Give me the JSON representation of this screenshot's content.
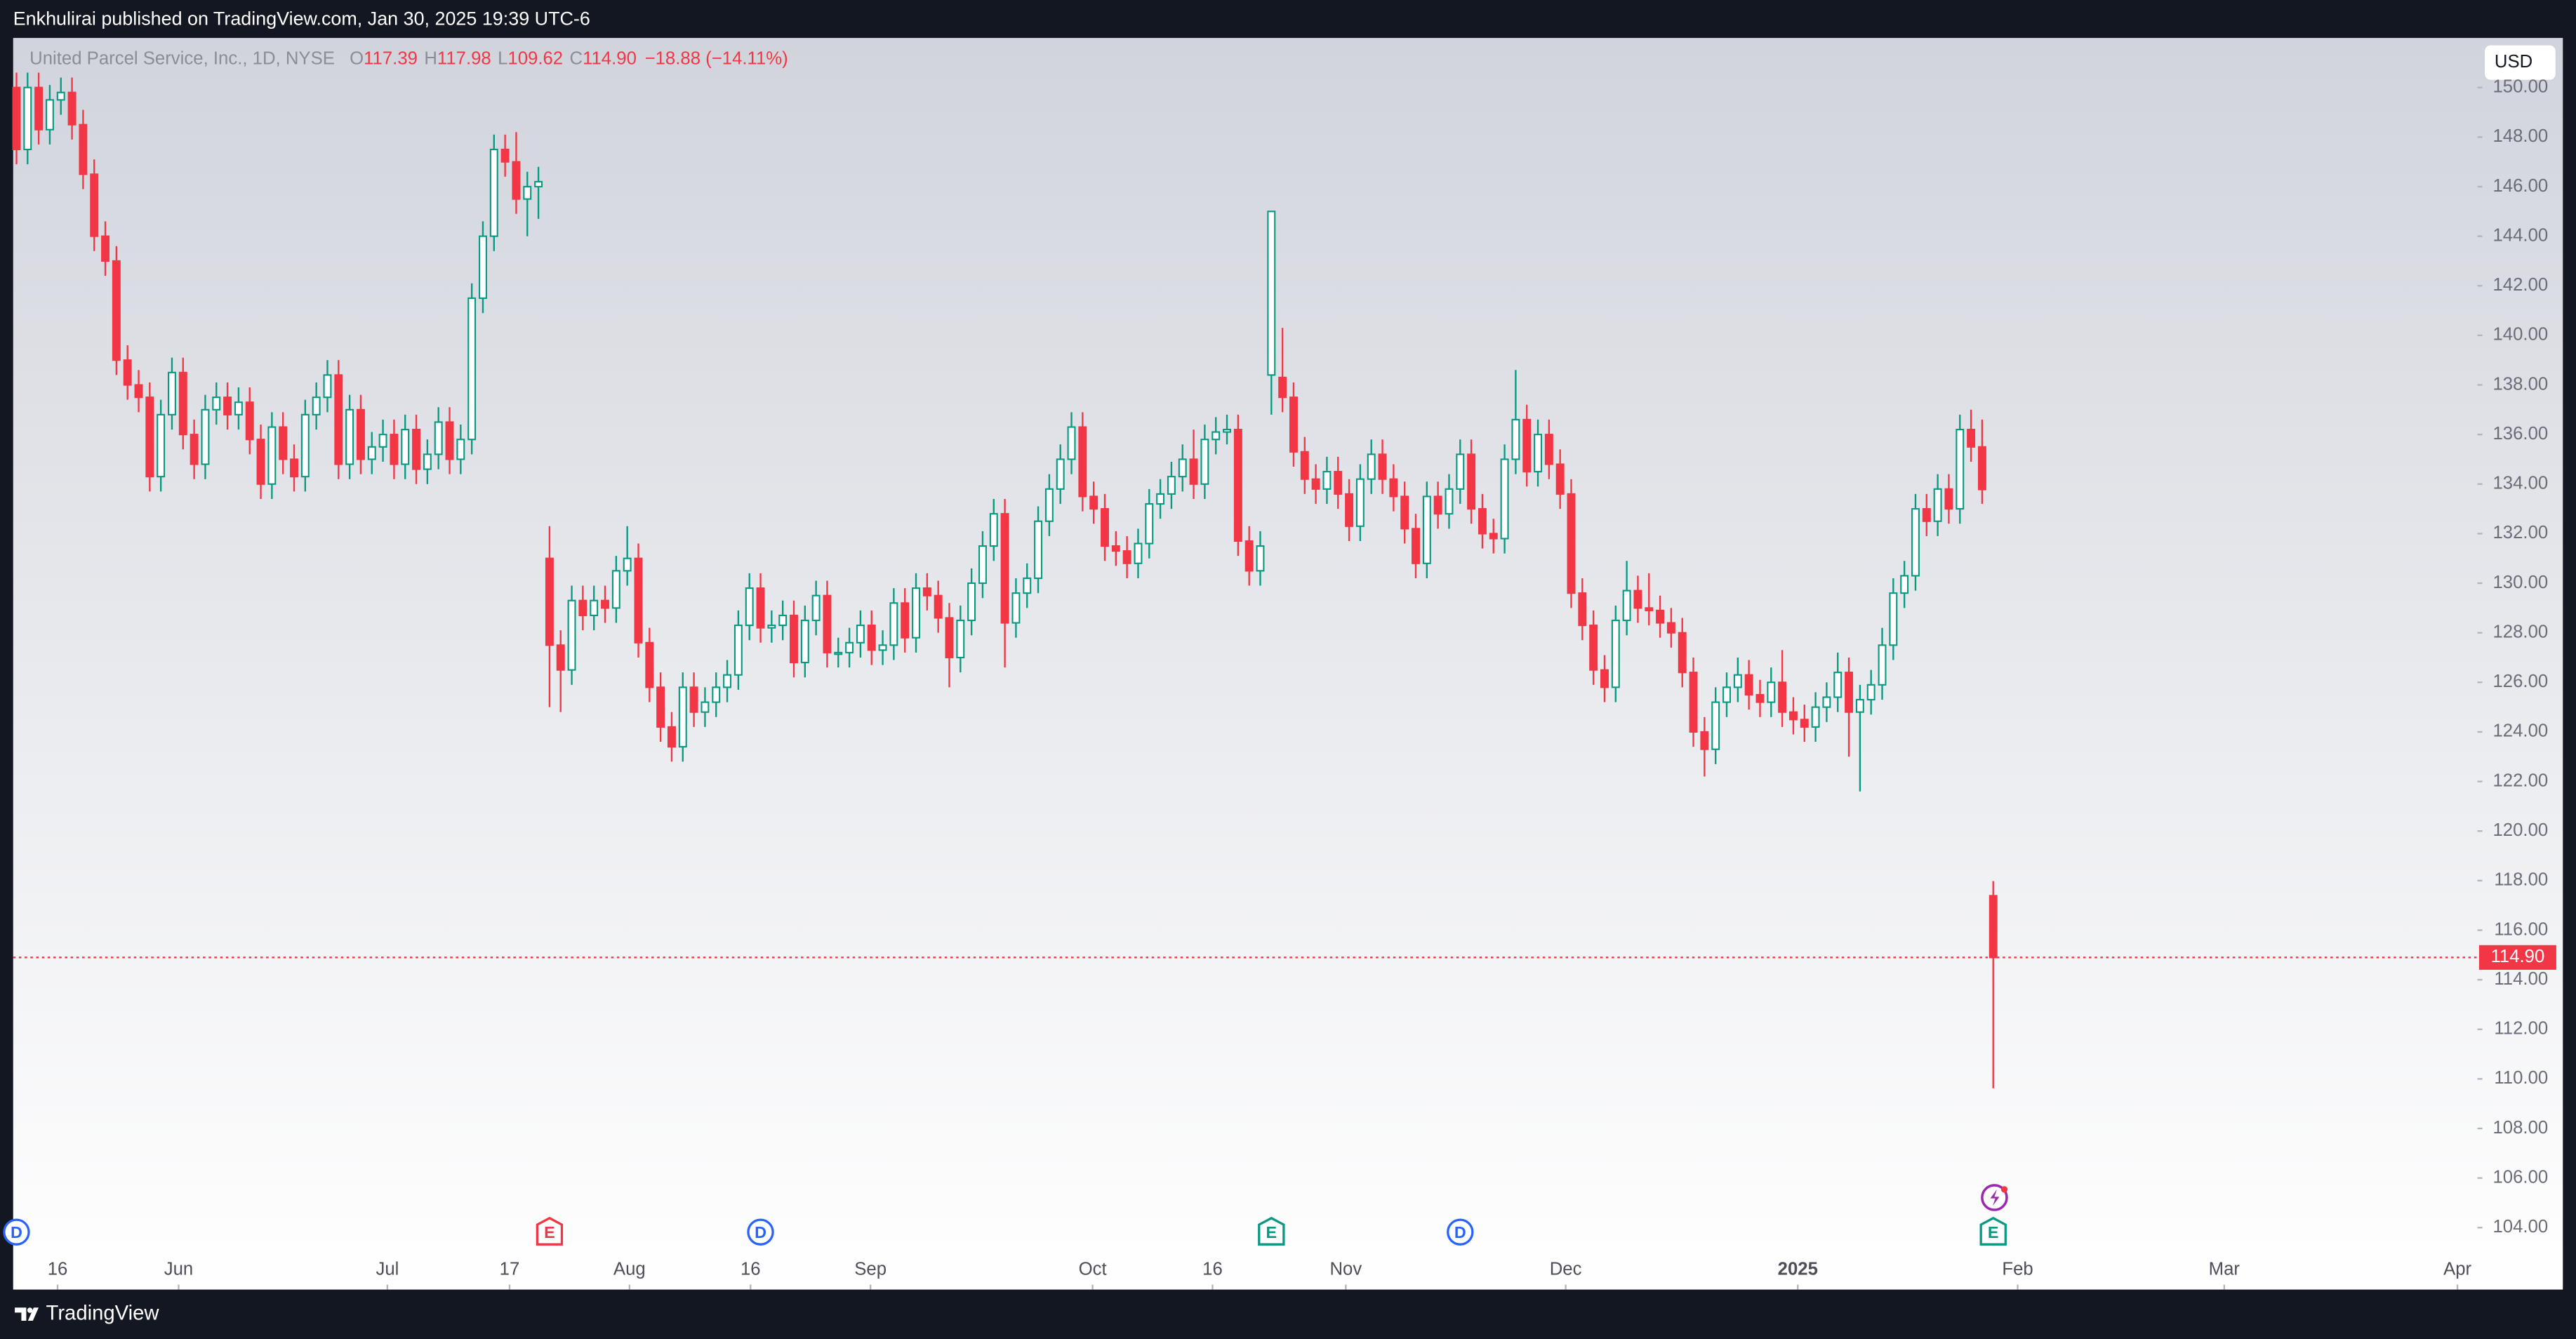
{
  "publisher": "Enkhulirai published on TradingView.com, Jan 30, 2025 19:39 UTC-6",
  "brand": "TradingView",
  "chart_data": {
    "type": "candlestick",
    "title": "United Parcel Service, Inc., 1D, NYSE",
    "ohlc": [
      {
        "key": "O",
        "value": "117.39"
      },
      {
        "key": "H",
        "value": "117.98"
      },
      {
        "key": "L",
        "value": "109.62"
      },
      {
        "key": "C",
        "value": "114.90"
      }
    ],
    "change": "−18.88 (−14.11%)",
    "currency": "USD",
    "last_price_label": "114.90",
    "up_color": "#089981",
    "down_color": "#f23645",
    "hollow_up": true,
    "ylim": [
      101.5,
      152
    ],
    "yticks": [
      {
        "value": 104,
        "label": "104.00"
      },
      {
        "value": 106,
        "label": "106.00"
      },
      {
        "value": 108,
        "label": "108.00"
      },
      {
        "value": 110,
        "label": "110.00"
      },
      {
        "value": 112,
        "label": "112.00"
      },
      {
        "value": 114,
        "label": "114.00"
      },
      {
        "value": 116,
        "label": "116.00"
      },
      {
        "value": 118,
        "label": "118.00"
      },
      {
        "value": 120,
        "label": "120.00"
      },
      {
        "value": 122,
        "label": "122.00"
      },
      {
        "value": 124,
        "label": "124.00"
      },
      {
        "value": 126,
        "label": "126.00"
      },
      {
        "value": 128,
        "label": "128.00"
      },
      {
        "value": 130,
        "label": "130.00"
      },
      {
        "value": 132,
        "label": "132.00"
      },
      {
        "value": 134,
        "label": "134.00"
      },
      {
        "value": 136,
        "label": "136.00"
      },
      {
        "value": 138,
        "label": "138.00"
      },
      {
        "value": 140,
        "label": "140.00"
      },
      {
        "value": 142,
        "label": "142.00"
      },
      {
        "value": 144,
        "label": "144.00"
      },
      {
        "value": 146,
        "label": "146.00"
      },
      {
        "value": 148,
        "label": "148.00"
      },
      {
        "value": 150,
        "label": "150.00"
      }
    ],
    "xlim": [
      -0.3,
      221.6
    ],
    "xticks": [
      {
        "value": 3.7,
        "label": "16"
      },
      {
        "value": 14.6,
        "label": "Jun"
      },
      {
        "value": 33.4,
        "label": "Jul"
      },
      {
        "value": 44.4,
        "label": "17"
      },
      {
        "value": 55.2,
        "label": "Aug"
      },
      {
        "value": 66.1,
        "label": "16"
      },
      {
        "value": 76.9,
        "label": "Sep"
      },
      {
        "value": 96.9,
        "label": "Oct"
      },
      {
        "value": 107.7,
        "label": "16"
      },
      {
        "value": 119.7,
        "label": "Nov"
      },
      {
        "value": 139.5,
        "label": "Dec"
      },
      {
        "value": 160.4,
        "label": "2025"
      },
      {
        "value": 180.2,
        "label": "Feb"
      },
      {
        "value": 198.8,
        "label": "Mar"
      },
      {
        "value": 219.8,
        "label": "Apr"
      }
    ],
    "events": [
      {
        "label": "D",
        "bar": 0,
        "color": "#2962ff"
      },
      {
        "label": "E",
        "bar": 48,
        "color": "#f23645"
      },
      {
        "label": "D",
        "bar": 67,
        "color": "#2962ff"
      },
      {
        "label": "E",
        "bar": 113,
        "color": "#089981"
      },
      {
        "label": "D",
        "bar": 130,
        "color": "#2962ff"
      },
      {
        "label": "E",
        "bar": 178,
        "color": "#089981"
      }
    ],
    "candles": [
      [
        150.0,
        150.6,
        146.9,
        147.5
      ],
      [
        147.5,
        150.6,
        146.9,
        150.0
      ],
      [
        150.0,
        150.6,
        147.7,
        148.3
      ],
      [
        148.3,
        150.1,
        147.7,
        149.5
      ],
      [
        149.5,
        150.4,
        148.9,
        149.8
      ],
      [
        149.8,
        150.4,
        147.9,
        148.5
      ],
      [
        148.5,
        149.1,
        145.9,
        146.5
      ],
      [
        146.5,
        147.1,
        143.4,
        144.0
      ],
      [
        144.0,
        144.6,
        142.4,
        143.0
      ],
      [
        143.0,
        143.6,
        138.4,
        139.0
      ],
      [
        139.0,
        139.6,
        137.4,
        138.0
      ],
      [
        138.0,
        138.6,
        136.9,
        137.5
      ],
      [
        137.5,
        138.1,
        133.7,
        134.3
      ],
      [
        134.3,
        137.4,
        133.7,
        136.8
      ],
      [
        136.8,
        139.1,
        136.2,
        138.5
      ],
      [
        138.5,
        139.1,
        135.4,
        136.0
      ],
      [
        136.0,
        136.6,
        134.2,
        134.8
      ],
      [
        134.8,
        137.6,
        134.2,
        137.0
      ],
      [
        137.0,
        138.1,
        136.4,
        137.5
      ],
      [
        137.5,
        138.1,
        136.2,
        136.8
      ],
      [
        136.8,
        137.9,
        136.2,
        137.3
      ],
      [
        137.3,
        137.9,
        135.2,
        135.8
      ],
      [
        135.8,
        136.4,
        133.4,
        134.0
      ],
      [
        134.0,
        136.9,
        133.4,
        136.3
      ],
      [
        136.3,
        136.9,
        134.4,
        135.0
      ],
      [
        135.0,
        135.6,
        133.7,
        134.3
      ],
      [
        134.3,
        137.4,
        133.7,
        136.8
      ],
      [
        136.8,
        138.1,
        136.2,
        137.5
      ],
      [
        137.5,
        139.0,
        136.9,
        138.4
      ],
      [
        138.4,
        139.0,
        134.2,
        134.8
      ],
      [
        134.8,
        137.6,
        134.2,
        137.0
      ],
      [
        137.0,
        137.6,
        134.4,
        135.0
      ],
      [
        135.0,
        136.1,
        134.4,
        135.5
      ],
      [
        135.5,
        136.6,
        134.9,
        136.0
      ],
      [
        136.0,
        136.6,
        134.2,
        134.8
      ],
      [
        134.8,
        136.8,
        134.2,
        136.2
      ],
      [
        136.2,
        136.8,
        134.0,
        134.6
      ],
      [
        134.6,
        135.8,
        134.0,
        135.2
      ],
      [
        135.2,
        137.1,
        134.6,
        136.5
      ],
      [
        136.5,
        137.1,
        134.4,
        135.0
      ],
      [
        135.0,
        136.4,
        134.4,
        135.8
      ],
      [
        135.8,
        142.1,
        135.2,
        141.5
      ],
      [
        141.5,
        144.6,
        140.9,
        144.0
      ],
      [
        144.0,
        148.1,
        143.4,
        147.5
      ],
      [
        147.5,
        148.1,
        146.4,
        147.0
      ],
      [
        147.0,
        148.2,
        144.9,
        145.5
      ],
      [
        145.5,
        146.6,
        144.0,
        146.0
      ],
      [
        146.0,
        146.8,
        144.7,
        146.2
      ],
      [
        131.0,
        132.3,
        125.0,
        127.5
      ],
      [
        127.5,
        128.1,
        124.8,
        126.5
      ],
      [
        126.5,
        129.9,
        125.9,
        129.3
      ],
      [
        129.3,
        129.9,
        128.1,
        128.7
      ],
      [
        128.7,
        129.9,
        128.1,
        129.3
      ],
      [
        129.3,
        129.9,
        128.4,
        129.0
      ],
      [
        129.0,
        131.1,
        128.4,
        130.5
      ],
      [
        130.5,
        132.3,
        129.9,
        131.0
      ],
      [
        131.0,
        131.6,
        127.0,
        127.6
      ],
      [
        127.6,
        128.2,
        125.2,
        125.8
      ],
      [
        125.8,
        126.4,
        123.6,
        124.2
      ],
      [
        124.2,
        124.8,
        122.8,
        123.4
      ],
      [
        123.4,
        126.4,
        122.8,
        125.8
      ],
      [
        125.8,
        126.4,
        124.2,
        124.8
      ],
      [
        124.8,
        125.8,
        124.2,
        125.2
      ],
      [
        125.2,
        126.4,
        124.6,
        125.8
      ],
      [
        125.8,
        126.9,
        125.2,
        126.3
      ],
      [
        126.3,
        128.9,
        125.7,
        128.3
      ],
      [
        128.3,
        130.4,
        127.7,
        129.8
      ],
      [
        129.8,
        130.4,
        127.6,
        128.2
      ],
      [
        128.2,
        128.9,
        127.6,
        128.3
      ],
      [
        128.3,
        129.3,
        127.7,
        128.7
      ],
      [
        128.7,
        129.3,
        126.2,
        126.8
      ],
      [
        126.8,
        129.1,
        126.2,
        128.5
      ],
      [
        128.5,
        130.1,
        127.9,
        129.5
      ],
      [
        129.5,
        130.1,
        126.6,
        127.2
      ],
      [
        127.2,
        127.8,
        126.6,
        127.2
      ],
      [
        127.2,
        128.2,
        126.6,
        127.6
      ],
      [
        127.6,
        128.9,
        127.0,
        128.3
      ],
      [
        128.3,
        128.9,
        126.7,
        127.3
      ],
      [
        127.3,
        128.1,
        126.7,
        127.5
      ],
      [
        127.5,
        129.8,
        126.9,
        129.2
      ],
      [
        129.2,
        129.8,
        127.2,
        127.8
      ],
      [
        127.8,
        130.4,
        127.2,
        129.8
      ],
      [
        129.8,
        130.4,
        128.9,
        129.5
      ],
      [
        129.5,
        130.1,
        128.0,
        128.6
      ],
      [
        128.6,
        129.2,
        125.8,
        127.0
      ],
      [
        127.0,
        129.1,
        126.4,
        128.5
      ],
      [
        128.5,
        130.6,
        127.9,
        130.0
      ],
      [
        130.0,
        132.1,
        129.4,
        131.5
      ],
      [
        131.5,
        133.4,
        130.9,
        132.8
      ],
      [
        132.8,
        133.4,
        126.6,
        128.4
      ],
      [
        128.4,
        130.2,
        127.8,
        129.6
      ],
      [
        129.6,
        130.8,
        129.0,
        130.2
      ],
      [
        130.2,
        133.1,
        129.6,
        132.5
      ],
      [
        132.5,
        134.4,
        131.9,
        133.8
      ],
      [
        133.8,
        135.6,
        133.2,
        135.0
      ],
      [
        135.0,
        136.9,
        134.4,
        136.3
      ],
      [
        136.3,
        136.9,
        132.9,
        133.5
      ],
      [
        133.5,
        134.1,
        132.4,
        133.0
      ],
      [
        133.0,
        133.6,
        130.9,
        131.5
      ],
      [
        131.5,
        132.1,
        130.7,
        131.3
      ],
      [
        131.3,
        131.9,
        130.2,
        130.8
      ],
      [
        130.8,
        132.2,
        130.2,
        131.6
      ],
      [
        131.6,
        133.8,
        131.0,
        133.2
      ],
      [
        133.2,
        134.2,
        132.6,
        133.6
      ],
      [
        133.6,
        134.9,
        133.0,
        134.3
      ],
      [
        134.3,
        135.6,
        133.7,
        135.0
      ],
      [
        135.0,
        136.2,
        133.4,
        134.0
      ],
      [
        134.0,
        136.4,
        133.4,
        135.8
      ],
      [
        135.8,
        136.7,
        135.2,
        136.1
      ],
      [
        136.1,
        136.8,
        135.6,
        136.2
      ],
      [
        136.2,
        136.8,
        131.1,
        131.7
      ],
      [
        131.7,
        132.3,
        129.9,
        130.5
      ],
      [
        130.5,
        132.1,
        129.9,
        131.5
      ],
      [
        138.4,
        145.0,
        136.8,
        145.0
      ],
      [
        138.3,
        140.3,
        136.9,
        137.5
      ],
      [
        137.5,
        138.1,
        134.7,
        135.3
      ],
      [
        135.3,
        135.9,
        133.6,
        134.2
      ],
      [
        134.2,
        134.8,
        133.2,
        133.8
      ],
      [
        133.8,
        135.1,
        133.2,
        134.5
      ],
      [
        134.5,
        135.1,
        133.0,
        133.6
      ],
      [
        133.6,
        134.2,
        131.7,
        132.3
      ],
      [
        132.3,
        134.8,
        131.7,
        134.2
      ],
      [
        134.2,
        135.8,
        133.6,
        135.2
      ],
      [
        135.2,
        135.8,
        133.6,
        134.2
      ],
      [
        134.2,
        134.8,
        132.9,
        133.5
      ],
      [
        133.5,
        134.1,
        131.6,
        132.2
      ],
      [
        132.2,
        132.8,
        130.2,
        130.8
      ],
      [
        130.8,
        134.1,
        130.2,
        133.5
      ],
      [
        133.5,
        134.1,
        132.2,
        132.8
      ],
      [
        132.8,
        134.4,
        132.2,
        133.8
      ],
      [
        133.8,
        135.8,
        133.2,
        135.2
      ],
      [
        135.2,
        135.8,
        132.4,
        133.0
      ],
      [
        133.0,
        133.6,
        131.4,
        132.0
      ],
      [
        132.0,
        132.6,
        131.2,
        131.8
      ],
      [
        131.8,
        135.6,
        131.2,
        135.0
      ],
      [
        135.0,
        138.6,
        134.4,
        136.6
      ],
      [
        136.6,
        137.2,
        133.9,
        134.5
      ],
      [
        134.5,
        136.6,
        133.9,
        136.0
      ],
      [
        136.0,
        136.6,
        134.2,
        134.8
      ],
      [
        134.8,
        135.4,
        133.0,
        133.6
      ],
      [
        133.6,
        134.2,
        129.0,
        129.6
      ],
      [
        129.6,
        130.2,
        127.7,
        128.3
      ],
      [
        128.3,
        128.9,
        125.9,
        126.5
      ],
      [
        126.5,
        127.1,
        125.2,
        125.8
      ],
      [
        125.8,
        129.1,
        125.2,
        128.5
      ],
      [
        128.5,
        130.9,
        127.9,
        129.7
      ],
      [
        129.7,
        130.3,
        128.4,
        129.0
      ],
      [
        129.0,
        130.4,
        128.3,
        128.9
      ],
      [
        128.9,
        129.5,
        127.8,
        128.4
      ],
      [
        128.4,
        129.0,
        127.4,
        128.0
      ],
      [
        128.0,
        128.6,
        125.8,
        126.4
      ],
      [
        126.4,
        127.0,
        123.4,
        124.0
      ],
      [
        124.0,
        124.6,
        122.2,
        123.3
      ],
      [
        123.3,
        125.8,
        122.7,
        125.2
      ],
      [
        125.2,
        126.4,
        124.6,
        125.8
      ],
      [
        125.8,
        127.0,
        125.2,
        126.3
      ],
      [
        126.3,
        126.9,
        124.9,
        125.5
      ],
      [
        125.5,
        126.1,
        124.6,
        125.2
      ],
      [
        125.2,
        126.6,
        124.6,
        126.0
      ],
      [
        126.0,
        127.3,
        124.2,
        124.8
      ],
      [
        124.8,
        125.4,
        123.9,
        124.5
      ],
      [
        124.5,
        125.1,
        123.6,
        124.2
      ],
      [
        124.2,
        125.6,
        123.6,
        125.0
      ],
      [
        125.0,
        126.0,
        124.4,
        125.4
      ],
      [
        125.4,
        127.2,
        124.8,
        126.4
      ],
      [
        126.4,
        127.0,
        123.0,
        124.8
      ],
      [
        124.8,
        125.9,
        121.6,
        125.3
      ],
      [
        125.3,
        126.5,
        124.7,
        125.9
      ],
      [
        125.9,
        128.2,
        125.3,
        127.5
      ],
      [
        127.5,
        130.2,
        126.9,
        129.6
      ],
      [
        129.6,
        130.9,
        129.0,
        130.3
      ],
      [
        130.3,
        133.6,
        129.7,
        133.0
      ],
      [
        133.0,
        133.6,
        131.9,
        132.5
      ],
      [
        132.5,
        134.4,
        131.9,
        133.8
      ],
      [
        133.8,
        134.4,
        132.4,
        133.0
      ],
      [
        133.0,
        136.8,
        132.4,
        136.2
      ],
      [
        136.2,
        137.0,
        134.9,
        135.5
      ],
      [
        135.5,
        136.6,
        133.2,
        133.78
      ],
      [
        117.39,
        117.98,
        109.62,
        114.9
      ]
    ]
  }
}
